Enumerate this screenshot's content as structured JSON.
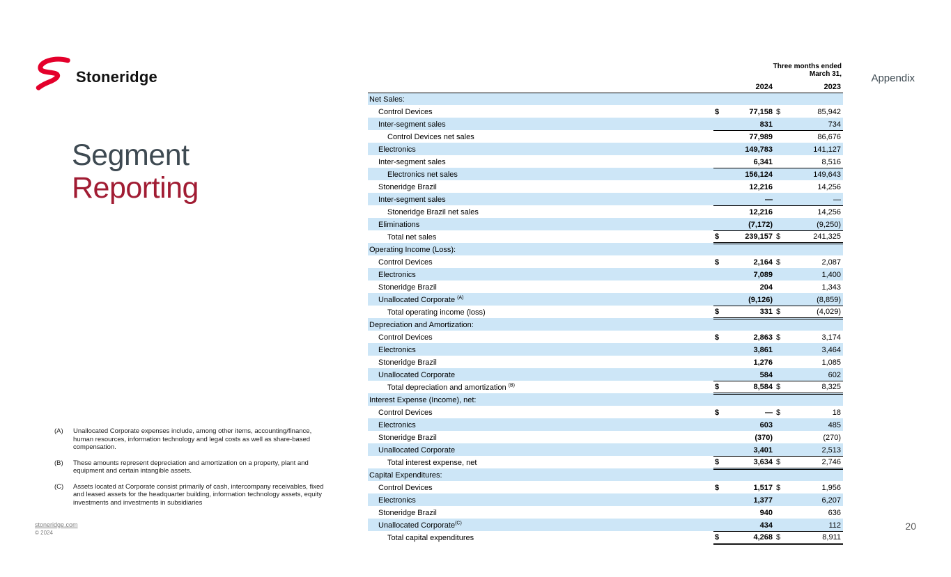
{
  "slide": {
    "logo_text": "Stoneridge",
    "title_line1": "Segment",
    "title_line2": "Reporting",
    "appendix_label": "Appendix",
    "page_number": "20",
    "footer_link": "stoneridge.com",
    "footer_copyright": "© 2024"
  },
  "colors": {
    "logo_red": "#E4002B",
    "title_dark": "#3E4A52",
    "title_red": "#A11C33",
    "row_shade_blue": "#CDE6F7"
  },
  "table": {
    "currency_symbol": "$",
    "header": {
      "period": "Three months ended",
      "date": "March 31,",
      "col2024": "2024",
      "col2023": "2023"
    },
    "rows": [
      {
        "label": "Net Sales:",
        "type": "section",
        "indent": 0
      },
      {
        "label": "Control Devices",
        "indent": 1,
        "dollar": true,
        "v2024": "77,158",
        "v2023": "85,942"
      },
      {
        "label": "Inter-segment sales",
        "indent": 1,
        "v2024": "831",
        "v2023": "734",
        "underline": "single"
      },
      {
        "label": "Control Devices net sales",
        "indent": 2,
        "v2024": "77,989",
        "v2023": "86,676"
      },
      {
        "label": "Electronics",
        "indent": 1,
        "v2024": "149,783",
        "v2023": "141,127"
      },
      {
        "label": "Inter-segment sales",
        "indent": 1,
        "v2024": "6,341",
        "v2023": "8,516",
        "underline": "single"
      },
      {
        "label": "Electronics net sales",
        "indent": 2,
        "v2024": "156,124",
        "v2023": "149,643"
      },
      {
        "label": "Stoneridge Brazil",
        "indent": 1,
        "v2024": "12,216",
        "v2023": "14,256"
      },
      {
        "label": "Inter-segment sales",
        "indent": 1,
        "v2024": "—",
        "v2023": "—",
        "underline": "single"
      },
      {
        "label": "Stoneridge Brazil net sales",
        "indent": 2,
        "v2024": "12,216",
        "v2023": "14,256"
      },
      {
        "label": "Eliminations",
        "indent": 1,
        "v2024": "(7,172)",
        "v2023": "(9,250)",
        "underline": "single"
      },
      {
        "label": "Total net sales",
        "indent": 2,
        "dollar": true,
        "v2024": "239,157",
        "v2023": "241,325",
        "underline": "double"
      },
      {
        "label": "Operating Income (Loss):",
        "type": "section",
        "indent": 0
      },
      {
        "label": "Control Devices",
        "indent": 1,
        "dollar": true,
        "v2024": "2,164",
        "v2023": "2,087"
      },
      {
        "label": "Electronics",
        "indent": 1,
        "v2024": "7,089",
        "v2023": "1,400"
      },
      {
        "label": "Stoneridge Brazil",
        "indent": 1,
        "v2024": "204",
        "v2023": "1,343"
      },
      {
        "label": "Unallocated Corporate",
        "sup": "(A)",
        "sup_gap": true,
        "indent": 1,
        "v2024": "(9,126)",
        "v2023": "(8,859)",
        "underline": "single"
      },
      {
        "label": "Total operating income (loss)",
        "indent": 2,
        "dollar": true,
        "v2024": "331",
        "v2023": "(4,029)",
        "underline": "double"
      },
      {
        "label": "Depreciation and Amortization:",
        "type": "section",
        "indent": 0
      },
      {
        "label": "Control Devices",
        "indent": 1,
        "dollar": true,
        "v2024": "2,863",
        "v2023": "3,174"
      },
      {
        "label": "Electronics",
        "indent": 1,
        "v2024": "3,861",
        "v2023": "3,464"
      },
      {
        "label": "Stoneridge Brazil",
        "indent": 1,
        "v2024": "1,276",
        "v2023": "1,085"
      },
      {
        "label": "Unallocated Corporate",
        "indent": 1,
        "v2024": "584",
        "v2023": "602",
        "underline": "single"
      },
      {
        "label": "Total depreciation and amortization",
        "sup": "(B)",
        "sup_gap": true,
        "indent": 2,
        "dollar": true,
        "v2024": "8,584",
        "v2023": "8,325",
        "underline": "double"
      },
      {
        "label": "Interest Expense (Income), net:",
        "type": "section",
        "indent": 0
      },
      {
        "label": "Control Devices",
        "indent": 1,
        "dollar": true,
        "v2024": "—",
        "v2023": "18"
      },
      {
        "label": "Electronics",
        "indent": 1,
        "v2024": "603",
        "v2023": "485"
      },
      {
        "label": "Stoneridge Brazil",
        "indent": 1,
        "v2024": "(370)",
        "v2023": "(270)"
      },
      {
        "label": "Unallocated Corporate",
        "indent": 1,
        "v2024": "3,401",
        "v2023": "2,513",
        "underline": "single"
      },
      {
        "label": "Total interest expense, net",
        "indent": 2,
        "dollar": true,
        "v2024": "3,634",
        "v2023": "2,746",
        "underline": "double"
      },
      {
        "label": "Capital Expenditures:",
        "type": "section",
        "indent": 0
      },
      {
        "label": "Control Devices",
        "indent": 1,
        "dollar": true,
        "v2024": "1,517",
        "v2023": "1,956"
      },
      {
        "label": "Electronics",
        "indent": 1,
        "v2024": "1,377",
        "v2023": "6,207"
      },
      {
        "label": "Stoneridge Brazil",
        "indent": 1,
        "v2024": "940",
        "v2023": "636"
      },
      {
        "label": "Unallocated Corporate",
        "sup": "(C)",
        "sup_gap": false,
        "indent": 1,
        "v2024": "434",
        "v2023": "112",
        "underline": "single"
      },
      {
        "label": "Total capital expenditures",
        "indent": 2,
        "dollar": true,
        "v2024": "4,268",
        "v2023": "8,911",
        "underline": "double"
      }
    ]
  },
  "footnotes": [
    {
      "marker": "(A)",
      "text": "Unallocated Corporate expenses include, among other items, accounting/finance, human resources, information technology and legal costs as well as share-based compensation."
    },
    {
      "marker": "(B)",
      "text": "These amounts represent depreciation and amortization on a property, plant and equipment and certain intangible assets."
    },
    {
      "marker": "(C)",
      "text": "Assets located at Corporate consist primarily of cash, intercompany receivables, fixed and leased assets for the headquarter building, information technology assets, equity investments and investments in subsidiaries"
    }
  ]
}
